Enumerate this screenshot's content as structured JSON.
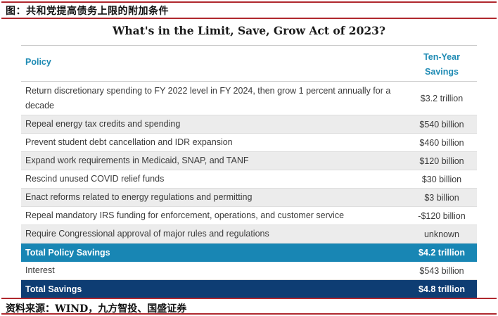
{
  "figure_caption": "图：共和党提高债务上限的附加条件",
  "source_caption": "资料来源：WIND，九方智投、国盛证券",
  "table": {
    "title": "What's in the Limit, Save, Grow Act of 2023?",
    "header_policy": "Policy",
    "header_savings_line1": "Ten-Year",
    "header_savings_line2": "Savings",
    "rows": [
      {
        "policy": "Return discretionary spending to FY 2022 level in FY 2024, then grow 1 percent annually for a decade",
        "savings": "$3.2 trillion"
      },
      {
        "policy": "Repeal energy tax credits and spending",
        "savings": "$540 billion"
      },
      {
        "policy": "Prevent student debt cancellation and IDR expansion",
        "savings": "$460 billion"
      },
      {
        "policy": "Expand work requirements in Medicaid, SNAP, and TANF",
        "savings": "$120 billion"
      },
      {
        "policy": "Rescind unused COVID relief funds",
        "savings": "$30 billion"
      },
      {
        "policy": "Enact reforms related to energy regulations and permitting",
        "savings": "$3 billion"
      },
      {
        "policy": "Repeal mandatory IRS funding for enforcement, operations, and customer service",
        "savings": "-$120 billion"
      },
      {
        "policy": "Require Congressional approval of major rules and regulations",
        "savings": "unknown"
      },
      {
        "policy": "Total Policy Savings",
        "savings": "$4.2 trillion"
      },
      {
        "policy": "Interest",
        "savings": "$543 billion"
      },
      {
        "policy": "Total Savings",
        "savings": "$4.8 trillion"
      }
    ]
  },
  "colors": {
    "header_text": "#1f8bb4",
    "total_policy_bg": "#1886b4",
    "total_savings_bg": "#0e3d73",
    "alt_row_bg": "#ececec",
    "frame": "#b0282e"
  }
}
